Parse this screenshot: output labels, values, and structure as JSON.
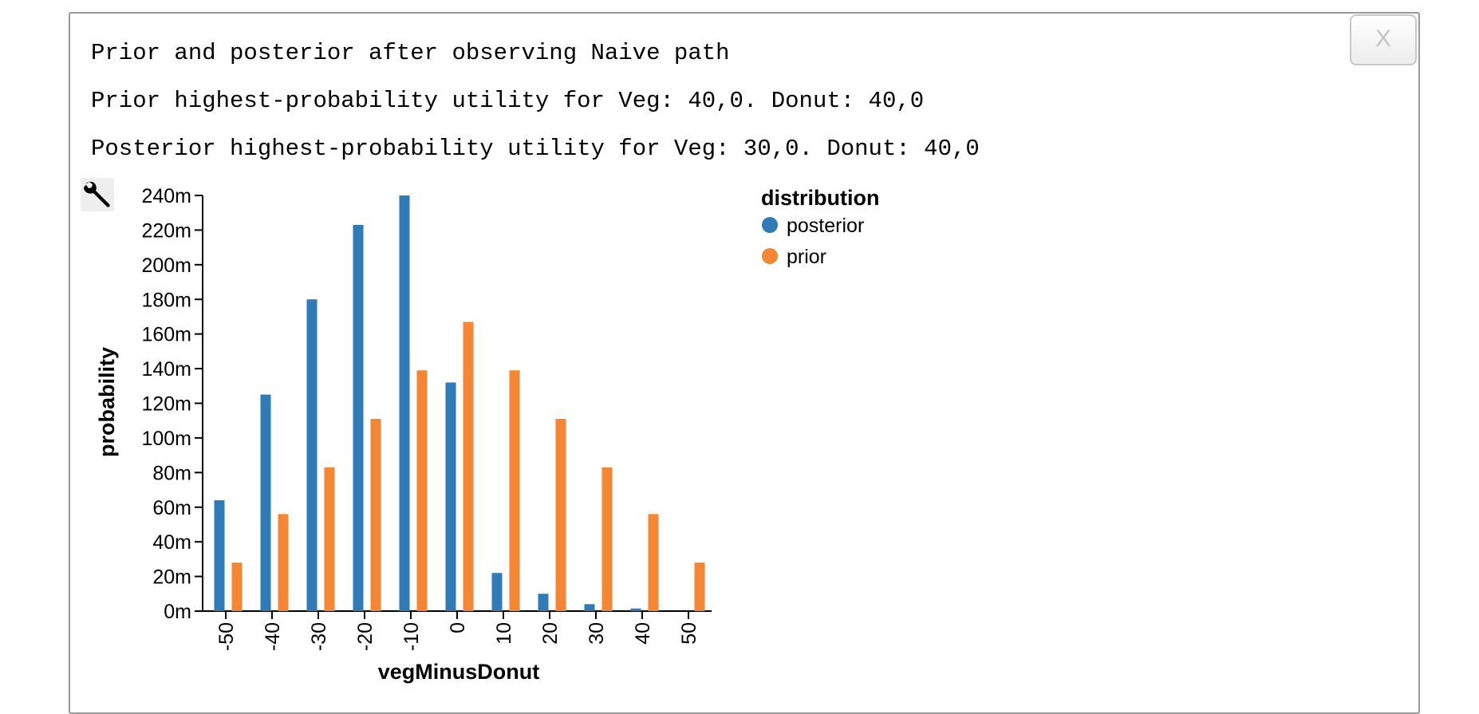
{
  "dialog": {
    "close_label": "X",
    "title_line": "Prior and posterior after observing Naive path",
    "prior_line": "Prior highest-probability utility for Veg: 40,0. Donut: 40,0",
    "posterior_line": "Posterior highest-probability utility for Veg: 30,0. Donut: 40,0",
    "tool_icon": "wrench-icon"
  },
  "chart_data": {
    "type": "bar",
    "xlabel": "vegMinusDonut",
    "ylabel": "probability",
    "categories": [
      "-50",
      "-40",
      "-30",
      "-20",
      "-10",
      "0",
      "10",
      "20",
      "30",
      "40",
      "50"
    ],
    "ylim": [
      0,
      0.24
    ],
    "yticks": [
      {
        "value": 0,
        "label": "0m"
      },
      {
        "value": 0.02,
        "label": "20m"
      },
      {
        "value": 0.04,
        "label": "40m"
      },
      {
        "value": 0.06,
        "label": "60m"
      },
      {
        "value": 0.08,
        "label": "80m"
      },
      {
        "value": 0.1,
        "label": "100m"
      },
      {
        "value": 0.12,
        "label": "120m"
      },
      {
        "value": 0.14,
        "label": "140m"
      },
      {
        "value": 0.16,
        "label": "160m"
      },
      {
        "value": 0.18,
        "label": "180m"
      },
      {
        "value": 0.2,
        "label": "200m"
      },
      {
        "value": 0.22,
        "label": "220m"
      },
      {
        "value": 0.24,
        "label": "240m"
      }
    ],
    "legend": {
      "title": "distribution",
      "placement": "right"
    },
    "series": [
      {
        "name": "posterior",
        "color": "#2f7bb8",
        "values": [
          0.064,
          0.125,
          0.18,
          0.223,
          0.24,
          0.132,
          0.022,
          0.01,
          0.004,
          0.0015,
          0
        ]
      },
      {
        "name": "prior",
        "color": "#f58634",
        "values": [
          0.028,
          0.056,
          0.083,
          0.111,
          0.139,
          0.167,
          0.139,
          0.111,
          0.083,
          0.056,
          0.028
        ]
      }
    ],
    "grid": false
  }
}
